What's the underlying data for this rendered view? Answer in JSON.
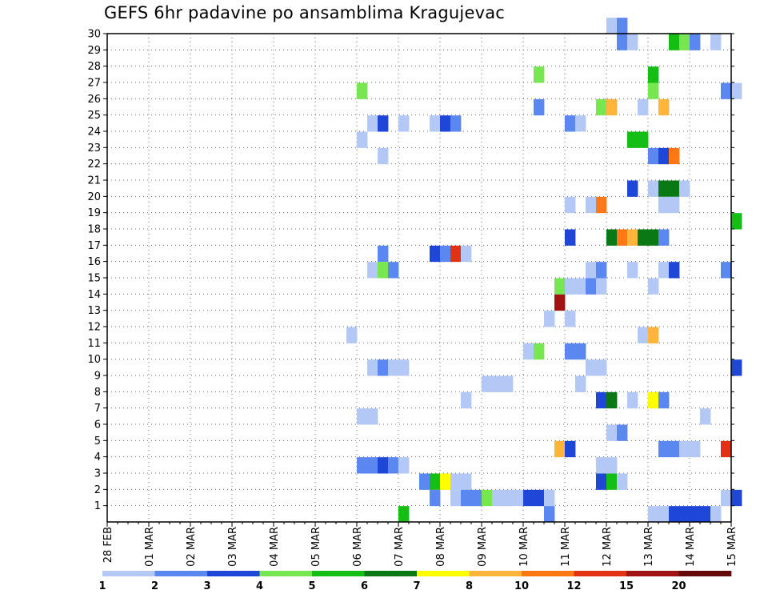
{
  "title": "GEFS 6hr padavine po ansamblima Kragujevac",
  "chart_data": {
    "type": "heatmap",
    "title": "GEFS 6hr padavine po ansamblima Kragujevac",
    "x_tick_labels": [
      "28 FEB",
      "01 MAR",
      "02 MAR",
      "03 MAR",
      "04 MAR",
      "05 MAR",
      "06 MAR",
      "07 MAR",
      "08 MAR",
      "09 MAR",
      "10 MAR",
      "11 MAR",
      "12 MAR",
      "13 MAR",
      "14 MAR",
      "15 MAR"
    ],
    "y_tick_labels": [
      "1",
      "2",
      "3",
      "4",
      "5",
      "6",
      "7",
      "8",
      "9",
      "10",
      "11",
      "12",
      "13",
      "14",
      "15",
      "16",
      "17",
      "18",
      "19",
      "20",
      "21",
      "22",
      "23",
      "24",
      "25",
      "26",
      "27",
      "28",
      "29",
      "30"
    ],
    "xlim_days": [
      0,
      15
    ],
    "ylim_members": [
      0,
      30
    ],
    "grid": true,
    "colorbar": {
      "levels": [
        "1",
        "2",
        "3",
        "4",
        "5",
        "6",
        "7",
        "8",
        "10",
        "12",
        "15",
        "20"
      ],
      "colors": [
        "#b4c8f5",
        "#5a87f0",
        "#1e46d7",
        "#78e650",
        "#14be14",
        "#0a7814",
        "#ffff00",
        "#ffb43c",
        "#ff7814",
        "#e13214",
        "#a01414",
        "#640a0a"
      ]
    },
    "cells": [
      [
        12.0,
        30,
        0
      ],
      [
        12.25,
        30,
        1
      ],
      [
        12.25,
        29,
        1
      ],
      [
        12.5,
        29,
        0
      ],
      [
        13.5,
        29,
        4
      ],
      [
        13.75,
        29,
        3
      ],
      [
        14.0,
        29,
        1
      ],
      [
        14.5,
        29,
        0
      ],
      [
        10.25,
        27,
        3
      ],
      [
        13.0,
        27,
        4
      ],
      [
        13.0,
        26,
        3
      ],
      [
        6.0,
        26,
        3
      ],
      [
        14.75,
        26,
        1
      ],
      [
        15.0,
        26,
        0
      ],
      [
        10.25,
        25,
        1
      ],
      [
        11.75,
        25,
        3
      ],
      [
        12.0,
        25,
        7
      ],
      [
        12.75,
        25,
        0
      ],
      [
        13.25,
        25,
        7
      ],
      [
        6.25,
        24,
        0
      ],
      [
        6.5,
        24,
        2
      ],
      [
        7.0,
        24,
        0
      ],
      [
        7.75,
        24,
        0
      ],
      [
        8.0,
        24,
        2
      ],
      [
        8.25,
        24,
        1
      ],
      [
        11.0,
        24,
        1
      ],
      [
        11.25,
        24,
        0
      ],
      [
        6.0,
        23,
        0
      ],
      [
        12.5,
        23,
        4
      ],
      [
        12.75,
        23,
        4
      ],
      [
        6.5,
        22,
        0
      ],
      [
        13.0,
        22,
        1
      ],
      [
        13.25,
        22,
        2
      ],
      [
        13.5,
        22,
        8
      ],
      [
        12.5,
        20,
        2
      ],
      [
        13.0,
        20,
        0
      ],
      [
        13.25,
        20,
        5
      ],
      [
        13.5,
        20,
        5
      ],
      [
        13.75,
        20,
        0
      ],
      [
        11.0,
        19,
        0
      ],
      [
        11.5,
        19,
        0
      ],
      [
        11.75,
        19,
        8
      ],
      [
        13.25,
        19,
        0
      ],
      [
        13.5,
        19,
        0
      ],
      [
        15.0,
        18,
        4
      ],
      [
        11.0,
        17,
        2
      ],
      [
        12.0,
        17,
        5
      ],
      [
        12.25,
        17,
        8
      ],
      [
        12.5,
        17,
        7
      ],
      [
        12.75,
        17,
        5
      ],
      [
        13.0,
        17,
        5
      ],
      [
        13.25,
        17,
        1
      ],
      [
        6.5,
        16,
        1
      ],
      [
        7.75,
        16,
        2
      ],
      [
        8.0,
        16,
        1
      ],
      [
        8.25,
        16,
        9
      ],
      [
        8.5,
        16,
        0
      ],
      [
        6.25,
        15,
        0
      ],
      [
        6.5,
        15,
        3
      ],
      [
        6.75,
        15,
        1
      ],
      [
        11.5,
        15,
        0
      ],
      [
        11.75,
        15,
        1
      ],
      [
        12.5,
        15,
        0
      ],
      [
        13.25,
        15,
        0
      ],
      [
        13.5,
        15,
        2
      ],
      [
        14.75,
        15,
        1
      ],
      [
        10.75,
        14,
        3
      ],
      [
        11.0,
        14,
        0
      ],
      [
        11.25,
        14,
        0
      ],
      [
        11.5,
        14,
        1
      ],
      [
        11.75,
        14,
        0
      ],
      [
        13.0,
        14,
        0
      ],
      [
        10.75,
        13,
        10
      ],
      [
        10.5,
        12,
        0
      ],
      [
        11.0,
        12,
        0
      ],
      [
        5.75,
        11,
        0
      ],
      [
        12.75,
        11,
        0
      ],
      [
        13.0,
        11,
        7
      ],
      [
        10.0,
        10,
        0
      ],
      [
        10.25,
        10,
        3
      ],
      [
        11.0,
        10,
        1
      ],
      [
        11.25,
        10,
        1
      ],
      [
        6.25,
        9,
        0
      ],
      [
        6.5,
        9,
        1
      ],
      [
        6.75,
        9,
        0
      ],
      [
        7.0,
        9,
        0
      ],
      [
        11.5,
        9,
        0
      ],
      [
        11.75,
        9,
        0
      ],
      [
        15.0,
        9,
        2
      ],
      [
        9.0,
        8,
        0
      ],
      [
        9.25,
        8,
        0
      ],
      [
        9.5,
        8,
        0
      ],
      [
        11.25,
        8,
        0
      ],
      [
        8.5,
        7,
        0
      ],
      [
        11.75,
        7,
        2
      ],
      [
        12.0,
        7,
        5
      ],
      [
        12.5,
        7,
        0
      ],
      [
        13.0,
        7,
        6
      ],
      [
        13.25,
        7,
        1
      ],
      [
        6.0,
        6,
        0
      ],
      [
        6.25,
        6,
        0
      ],
      [
        14.25,
        6,
        0
      ],
      [
        12.0,
        5,
        0
      ],
      [
        12.25,
        5,
        1
      ],
      [
        10.75,
        4,
        7
      ],
      [
        11.0,
        4,
        2
      ],
      [
        13.25,
        4,
        1
      ],
      [
        13.5,
        4,
        1
      ],
      [
        13.75,
        4,
        0
      ],
      [
        14.0,
        4,
        0
      ],
      [
        14.75,
        4,
        9
      ],
      [
        6.0,
        3,
        1
      ],
      [
        6.25,
        3,
        1
      ],
      [
        6.5,
        3,
        2
      ],
      [
        6.75,
        3,
        1
      ],
      [
        7.0,
        3,
        0
      ],
      [
        11.75,
        3,
        0
      ],
      [
        12.0,
        3,
        0
      ],
      [
        7.5,
        2,
        1
      ],
      [
        7.75,
        2,
        4
      ],
      [
        8.0,
        2,
        6
      ],
      [
        8.25,
        2,
        0
      ],
      [
        8.5,
        2,
        0
      ],
      [
        11.75,
        2,
        2
      ],
      [
        12.0,
        2,
        4
      ],
      [
        12.25,
        2,
        0
      ],
      [
        7.75,
        1,
        1
      ],
      [
        8.25,
        1,
        0
      ],
      [
        8.5,
        1,
        1
      ],
      [
        8.75,
        1,
        1
      ],
      [
        9.0,
        1,
        3
      ],
      [
        9.25,
        1,
        0
      ],
      [
        9.5,
        1,
        0
      ],
      [
        9.75,
        1,
        0
      ],
      [
        10.0,
        1,
        2
      ],
      [
        10.25,
        1,
        2
      ],
      [
        10.5,
        1,
        0
      ],
      [
        14.75,
        1,
        0
      ],
      [
        15.0,
        1,
        2
      ],
      [
        7.0,
        0,
        4
      ],
      [
        10.5,
        0,
        1
      ],
      [
        13.0,
        0,
        0
      ],
      [
        13.25,
        0,
        0
      ],
      [
        13.5,
        0,
        2
      ],
      [
        13.75,
        0,
        2
      ],
      [
        14.0,
        0,
        2
      ],
      [
        14.25,
        0,
        2
      ],
      [
        14.5,
        0,
        0
      ]
    ]
  }
}
